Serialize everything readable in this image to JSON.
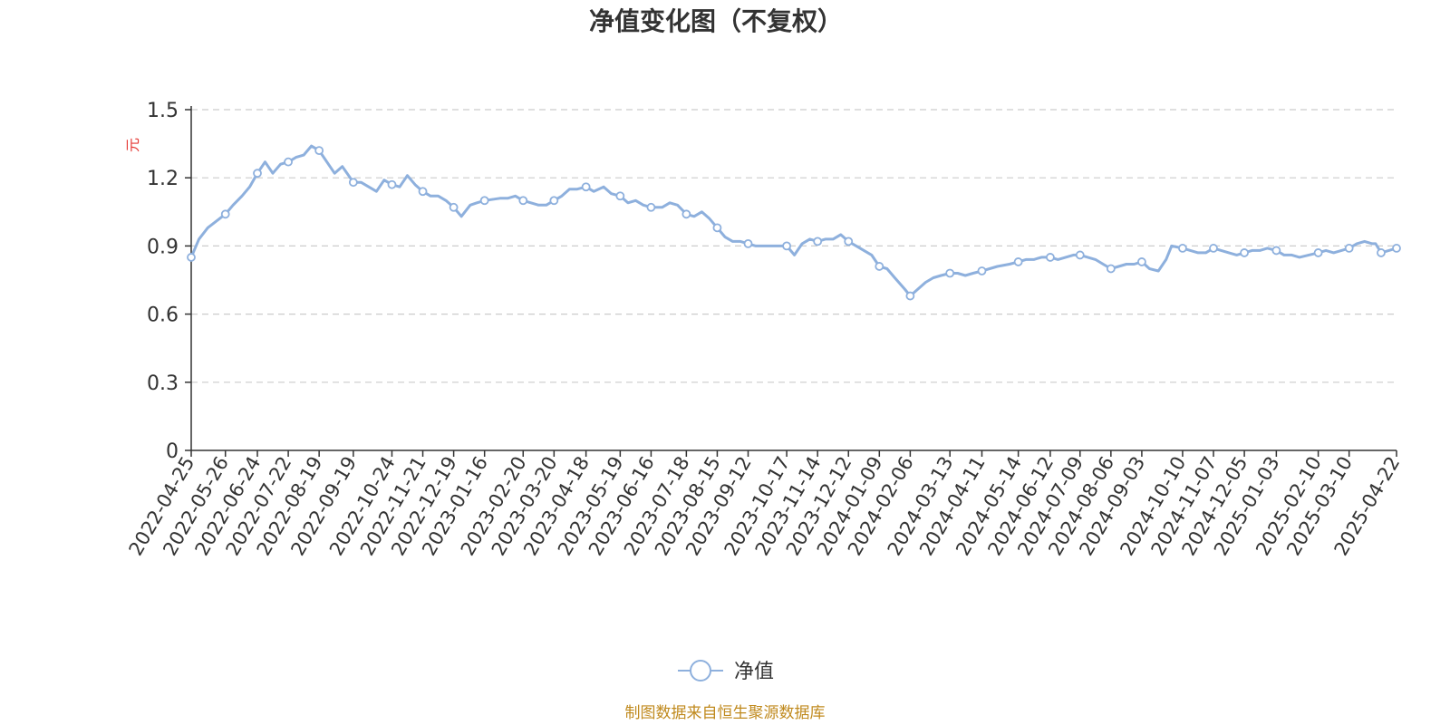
{
  "colors": {
    "series": "#8EB0DD",
    "axis": "#333333",
    "grid": "#cccccc",
    "ylabel": "#e53935",
    "source": "#c08a1e",
    "marker_fill": "#ffffff"
  },
  "chart_data": {
    "type": "line",
    "title": "净值变化图（不复权）",
    "ylabel": "元",
    "ylim": [
      0,
      1.5
    ],
    "yticks": [
      "0",
      "0.3",
      "0.6",
      "0.9",
      "1.2",
      "1.5"
    ],
    "grid": true,
    "legend_position": "bottom-center",
    "x_start": "2022-04-25",
    "x_end": "2025-04-22",
    "x_tick_labels": [
      "2022-04-25",
      "2022-05-26",
      "2022-06-24",
      "2022-07-22",
      "2022-08-19",
      "2022-09-19",
      "2022-10-24",
      "2022-11-21",
      "2022-12-19",
      "2023-01-16",
      "2023-02-20",
      "2023-03-20",
      "2023-04-18",
      "2023-05-19",
      "2023-06-16",
      "2023-07-18",
      "2023-08-15",
      "2023-09-12",
      "2023-10-17",
      "2023-11-14",
      "2023-12-12",
      "2024-01-09",
      "2024-02-06",
      "2024-03-13",
      "2024-04-11",
      "2024-05-14",
      "2024-06-12",
      "2024-07-09",
      "2024-08-06",
      "2024-09-03",
      "2024-10-10",
      "2024-11-07",
      "2024-12-05",
      "2025-01-03",
      "2025-02-10",
      "2025-03-10",
      "2025-04-22"
    ],
    "series": [
      {
        "name": "净值",
        "points": [
          [
            "2022-04-25",
            0.85
          ],
          [
            "2022-05-02",
            0.93
          ],
          [
            "2022-05-10",
            0.98
          ],
          [
            "2022-05-18",
            1.01
          ],
          [
            "2022-05-26",
            1.04
          ],
          [
            "2022-06-02",
            1.08
          ],
          [
            "2022-06-10",
            1.12
          ],
          [
            "2022-06-17",
            1.16
          ],
          [
            "2022-06-24",
            1.22
          ],
          [
            "2022-07-01",
            1.27
          ],
          [
            "2022-07-08",
            1.22
          ],
          [
            "2022-07-15",
            1.26
          ],
          [
            "2022-07-22",
            1.27
          ],
          [
            "2022-07-29",
            1.29
          ],
          [
            "2022-08-05",
            1.3
          ],
          [
            "2022-08-12",
            1.34
          ],
          [
            "2022-08-19",
            1.32
          ],
          [
            "2022-08-26",
            1.27
          ],
          [
            "2022-09-02",
            1.22
          ],
          [
            "2022-09-09",
            1.25
          ],
          [
            "2022-09-19",
            1.18
          ],
          [
            "2022-09-26",
            1.18
          ],
          [
            "2022-10-10",
            1.14
          ],
          [
            "2022-10-17",
            1.19
          ],
          [
            "2022-10-24",
            1.17
          ],
          [
            "2022-10-31",
            1.16
          ],
          [
            "2022-11-07",
            1.21
          ],
          [
            "2022-11-14",
            1.17
          ],
          [
            "2022-11-21",
            1.14
          ],
          [
            "2022-11-28",
            1.12
          ],
          [
            "2022-12-05",
            1.12
          ],
          [
            "2022-12-12",
            1.1
          ],
          [
            "2022-12-19",
            1.07
          ],
          [
            "2022-12-26",
            1.03
          ],
          [
            "2023-01-03",
            1.08
          ],
          [
            "2023-01-09",
            1.09
          ],
          [
            "2023-01-16",
            1.1
          ],
          [
            "2023-01-30",
            1.11
          ],
          [
            "2023-02-06",
            1.11
          ],
          [
            "2023-02-13",
            1.12
          ],
          [
            "2023-02-20",
            1.1
          ],
          [
            "2023-02-27",
            1.09
          ],
          [
            "2023-03-06",
            1.08
          ],
          [
            "2023-03-13",
            1.08
          ],
          [
            "2023-03-20",
            1.1
          ],
          [
            "2023-03-27",
            1.12
          ],
          [
            "2023-04-03",
            1.15
          ],
          [
            "2023-04-10",
            1.15
          ],
          [
            "2023-04-18",
            1.16
          ],
          [
            "2023-04-25",
            1.14
          ],
          [
            "2023-05-04",
            1.16
          ],
          [
            "2023-05-11",
            1.13
          ],
          [
            "2023-05-19",
            1.12
          ],
          [
            "2023-05-26",
            1.09
          ],
          [
            "2023-06-02",
            1.1
          ],
          [
            "2023-06-09",
            1.08
          ],
          [
            "2023-06-16",
            1.07
          ],
          [
            "2023-06-26",
            1.07
          ],
          [
            "2023-07-03",
            1.09
          ],
          [
            "2023-07-10",
            1.08
          ],
          [
            "2023-07-18",
            1.04
          ],
          [
            "2023-07-25",
            1.03
          ],
          [
            "2023-08-01",
            1.05
          ],
          [
            "2023-08-08",
            1.02
          ],
          [
            "2023-08-15",
            0.98
          ],
          [
            "2023-08-22",
            0.94
          ],
          [
            "2023-08-29",
            0.92
          ],
          [
            "2023-09-05",
            0.92
          ],
          [
            "2023-09-12",
            0.91
          ],
          [
            "2023-09-19",
            0.9
          ],
          [
            "2023-09-26",
            0.9
          ],
          [
            "2023-10-09",
            0.9
          ],
          [
            "2023-10-17",
            0.9
          ],
          [
            "2023-10-24",
            0.86
          ],
          [
            "2023-10-31",
            0.91
          ],
          [
            "2023-11-07",
            0.93
          ],
          [
            "2023-11-14",
            0.92
          ],
          [
            "2023-11-21",
            0.93
          ],
          [
            "2023-11-28",
            0.93
          ],
          [
            "2023-12-05",
            0.95
          ],
          [
            "2023-12-12",
            0.92
          ],
          [
            "2023-12-19",
            0.9
          ],
          [
            "2023-12-26",
            0.88
          ],
          [
            "2024-01-02",
            0.86
          ],
          [
            "2024-01-09",
            0.81
          ],
          [
            "2024-01-16",
            0.8
          ],
          [
            "2024-01-23",
            0.76
          ],
          [
            "2024-02-01",
            0.71
          ],
          [
            "2024-02-06",
            0.68
          ],
          [
            "2024-02-20",
            0.74
          ],
          [
            "2024-02-27",
            0.76
          ],
          [
            "2024-03-05",
            0.77
          ],
          [
            "2024-03-13",
            0.78
          ],
          [
            "2024-03-20",
            0.78
          ],
          [
            "2024-03-27",
            0.77
          ],
          [
            "2024-04-03",
            0.78
          ],
          [
            "2024-04-11",
            0.79
          ],
          [
            "2024-04-18",
            0.8
          ],
          [
            "2024-04-25",
            0.81
          ],
          [
            "2024-05-06",
            0.82
          ],
          [
            "2024-05-14",
            0.83
          ],
          [
            "2024-05-21",
            0.84
          ],
          [
            "2024-05-28",
            0.84
          ],
          [
            "2024-06-04",
            0.85
          ],
          [
            "2024-06-12",
            0.85
          ],
          [
            "2024-06-19",
            0.84
          ],
          [
            "2024-06-26",
            0.85
          ],
          [
            "2024-07-03",
            0.86
          ],
          [
            "2024-07-09",
            0.86
          ],
          [
            "2024-07-16",
            0.85
          ],
          [
            "2024-07-23",
            0.84
          ],
          [
            "2024-07-30",
            0.82
          ],
          [
            "2024-08-06",
            0.8
          ],
          [
            "2024-08-13",
            0.81
          ],
          [
            "2024-08-20",
            0.82
          ],
          [
            "2024-08-27",
            0.82
          ],
          [
            "2024-09-03",
            0.83
          ],
          [
            "2024-09-10",
            0.8
          ],
          [
            "2024-09-18",
            0.79
          ],
          [
            "2024-09-25",
            0.84
          ],
          [
            "2024-09-30",
            0.9
          ],
          [
            "2024-10-10",
            0.89
          ],
          [
            "2024-10-17",
            0.88
          ],
          [
            "2024-10-24",
            0.87
          ],
          [
            "2024-10-31",
            0.87
          ],
          [
            "2024-11-07",
            0.89
          ],
          [
            "2024-11-14",
            0.88
          ],
          [
            "2024-11-21",
            0.87
          ],
          [
            "2024-11-28",
            0.86
          ],
          [
            "2024-12-05",
            0.87
          ],
          [
            "2024-12-12",
            0.88
          ],
          [
            "2024-12-19",
            0.88
          ],
          [
            "2024-12-26",
            0.89
          ],
          [
            "2025-01-03",
            0.88
          ],
          [
            "2025-01-10",
            0.86
          ],
          [
            "2025-01-17",
            0.86
          ],
          [
            "2025-01-24",
            0.85
          ],
          [
            "2025-02-10",
            0.87
          ],
          [
            "2025-02-17",
            0.88
          ],
          [
            "2025-02-24",
            0.87
          ],
          [
            "2025-03-03",
            0.88
          ],
          [
            "2025-03-10",
            0.89
          ],
          [
            "2025-03-17",
            0.91
          ],
          [
            "2025-03-24",
            0.92
          ],
          [
            "2025-03-31",
            0.91
          ],
          [
            "2025-04-03",
            0.91
          ],
          [
            "2025-04-08",
            0.87
          ],
          [
            "2025-04-15",
            0.88
          ],
          [
            "2025-04-22",
            0.89
          ]
        ],
        "markers": [
          [
            "2022-04-25",
            0.85
          ],
          [
            "2022-05-26",
            1.04
          ],
          [
            "2022-06-24",
            1.22
          ],
          [
            "2022-07-22",
            1.27
          ],
          [
            "2022-08-19",
            1.32
          ],
          [
            "2022-09-19",
            1.18
          ],
          [
            "2022-10-24",
            1.17
          ],
          [
            "2022-11-21",
            1.14
          ],
          [
            "2022-12-19",
            1.07
          ],
          [
            "2023-01-16",
            1.1
          ],
          [
            "2023-02-20",
            1.1
          ],
          [
            "2023-03-20",
            1.1
          ],
          [
            "2023-04-18",
            1.16
          ],
          [
            "2023-05-19",
            1.12
          ],
          [
            "2023-06-16",
            1.07
          ],
          [
            "2023-07-18",
            1.04
          ],
          [
            "2023-08-15",
            0.98
          ],
          [
            "2023-09-12",
            0.91
          ],
          [
            "2023-10-17",
            0.9
          ],
          [
            "2023-11-14",
            0.92
          ],
          [
            "2023-12-12",
            0.92
          ],
          [
            "2024-01-09",
            0.81
          ],
          [
            "2024-02-06",
            0.68
          ],
          [
            "2024-03-13",
            0.78
          ],
          [
            "2024-04-11",
            0.79
          ],
          [
            "2024-05-14",
            0.83
          ],
          [
            "2024-06-12",
            0.85
          ],
          [
            "2024-07-09",
            0.86
          ],
          [
            "2024-08-06",
            0.8
          ],
          [
            "2024-09-03",
            0.83
          ],
          [
            "2024-10-10",
            0.89
          ],
          [
            "2024-11-07",
            0.89
          ],
          [
            "2024-12-05",
            0.87
          ],
          [
            "2025-01-03",
            0.88
          ],
          [
            "2025-02-10",
            0.87
          ],
          [
            "2025-03-10",
            0.89
          ],
          [
            "2025-04-08",
            0.87
          ],
          [
            "2025-04-22",
            0.89
          ]
        ]
      }
    ]
  },
  "legend": {
    "label": "净值"
  },
  "source": "制图数据来自恒生聚源数据库"
}
